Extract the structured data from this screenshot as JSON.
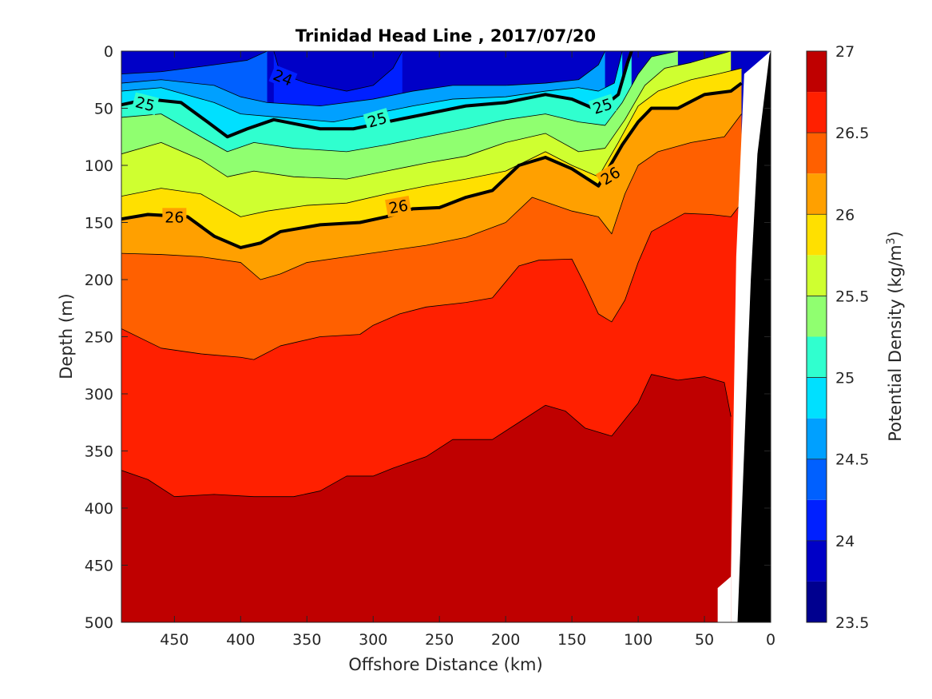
{
  "chart_data": {
    "type": "contour",
    "title": "Trinidad Head Line , 2017/07/20",
    "xlabel": "Offshore Distance (km)",
    "ylabel": "Depth (m)",
    "colorbar_label_prefix": "Potential Density (kg/m",
    "colorbar_label_sup": "3",
    "colorbar_label_suffix": ")",
    "xlim": [
      490,
      0
    ],
    "ylim": [
      500,
      0
    ],
    "y_reversed": true,
    "x_reversed": true,
    "x_ticks": [
      450,
      400,
      350,
      300,
      250,
      200,
      150,
      100,
      50,
      0
    ],
    "y_ticks": [
      0,
      50,
      100,
      150,
      200,
      250,
      300,
      350,
      400,
      450,
      500
    ],
    "colorbar_ticks": [
      27,
      26.5,
      26,
      25.5,
      25,
      24.5,
      24,
      23.5
    ],
    "colorbar_range": [
      23.5,
      27
    ],
    "colormap": "jet",
    "level_colors": [
      {
        "from": 23.5,
        "to": 23.75,
        "color": "#00008f"
      },
      {
        "from": 23.75,
        "to": 24.0,
        "color": "#0000c7"
      },
      {
        "from": 24.0,
        "to": 24.25,
        "color": "#0020ff"
      },
      {
        "from": 24.25,
        "to": 24.5,
        "color": "#0060ff"
      },
      {
        "from": 24.5,
        "to": 24.75,
        "color": "#00a0ff"
      },
      {
        "from": 24.75,
        "to": 25.0,
        "color": "#00e0ff"
      },
      {
        "from": 25.0,
        "to": 25.25,
        "color": "#30ffcf"
      },
      {
        "from": 25.25,
        "to": 25.5,
        "color": "#90ff70"
      },
      {
        "from": 25.5,
        "to": 25.75,
        "color": "#cfff30"
      },
      {
        "from": 25.75,
        "to": 26.0,
        "color": "#ffe000"
      },
      {
        "from": 26.0,
        "to": 26.25,
        "color": "#ffa000"
      },
      {
        "from": 26.25,
        "to": 26.5,
        "color": "#ff6000"
      },
      {
        "from": 26.5,
        "to": 26.75,
        "color": "#ff2000"
      },
      {
        "from": 26.75,
        "to": 27.0,
        "color": "#bf0000"
      }
    ],
    "contour_labels": [
      {
        "text": "24",
        "x": 368,
        "y": 23,
        "angle": 22
      },
      {
        "text": "25",
        "x": 472,
        "y": 46,
        "angle": 14
      },
      {
        "text": "25",
        "x": 297,
        "y": 60,
        "angle": -16
      },
      {
        "text": "25",
        "x": 127,
        "y": 48,
        "angle": -18
      },
      {
        "text": "26",
        "x": 450,
        "y": 145,
        "angle": 0
      },
      {
        "text": "26",
        "x": 281,
        "y": 136,
        "angle": -10
      },
      {
        "text": "26",
        "x": 121,
        "y": 109,
        "angle": -32
      }
    ],
    "isopycnals": [
      {
        "level": 24.0,
        "points": [
          [
            375,
            0
          ],
          [
            370,
            20
          ],
          [
            350,
            28
          ],
          [
            320,
            35
          ],
          [
            300,
            30
          ],
          [
            285,
            15
          ],
          [
            278,
            0
          ]
        ]
      },
      {
        "level": 24.25,
        "points": [
          [
            490,
            20
          ],
          [
            460,
            18
          ],
          [
            420,
            12
          ],
          [
            395,
            8
          ],
          [
            380,
            0
          ]
        ]
      },
      {
        "level": 24.5,
        "points": [
          [
            490,
            28
          ],
          [
            460,
            25
          ],
          [
            420,
            30
          ],
          [
            400,
            40
          ],
          [
            380,
            45
          ],
          [
            340,
            48
          ],
          [
            300,
            42
          ],
          [
            270,
            35
          ],
          [
            240,
            30
          ],
          [
            200,
            30
          ],
          [
            170,
            28
          ],
          [
            145,
            25
          ],
          [
            130,
            12
          ],
          [
            125,
            0
          ]
        ]
      },
      {
        "level": 24.75,
        "points": [
          [
            490,
            35
          ],
          [
            460,
            32
          ],
          [
            420,
            45
          ],
          [
            400,
            55
          ],
          [
            370,
            58
          ],
          [
            330,
            62
          ],
          [
            300,
            55
          ],
          [
            270,
            48
          ],
          [
            240,
            42
          ],
          [
            200,
            40
          ],
          [
            170,
            35
          ],
          [
            145,
            32
          ],
          [
            130,
            35
          ],
          [
            118,
            28
          ],
          [
            112,
            0
          ]
        ]
      },
      {
        "level": 25.0,
        "points": [
          [
            490,
            47
          ],
          [
            470,
            42
          ],
          [
            445,
            45
          ],
          [
            425,
            62
          ],
          [
            410,
            75
          ],
          [
            395,
            68
          ],
          [
            375,
            60
          ],
          [
            340,
            68
          ],
          [
            315,
            68
          ],
          [
            290,
            62
          ],
          [
            260,
            55
          ],
          [
            230,
            48
          ],
          [
            200,
            45
          ],
          [
            170,
            38
          ],
          [
            150,
            42
          ],
          [
            130,
            52
          ],
          [
            115,
            38
          ],
          [
            108,
            10
          ],
          [
            105,
            0
          ]
        ]
      },
      {
        "level": 25.25,
        "points": [
          [
            490,
            58
          ],
          [
            460,
            55
          ],
          [
            430,
            75
          ],
          [
            410,
            88
          ],
          [
            390,
            80
          ],
          [
            360,
            85
          ],
          [
            320,
            88
          ],
          [
            290,
            82
          ],
          [
            260,
            75
          ],
          [
            230,
            68
          ],
          [
            200,
            60
          ],
          [
            170,
            55
          ],
          [
            145,
            62
          ],
          [
            125,
            65
          ],
          [
            112,
            45
          ],
          [
            100,
            20
          ],
          [
            90,
            5
          ],
          [
            70,
            0
          ]
        ]
      },
      {
        "level": 25.5,
        "points": [
          [
            490,
            90
          ],
          [
            460,
            80
          ],
          [
            430,
            95
          ],
          [
            410,
            110
          ],
          [
            390,
            105
          ],
          [
            360,
            110
          ],
          [
            320,
            112
          ],
          [
            290,
            105
          ],
          [
            260,
            98
          ],
          [
            230,
            92
          ],
          [
            200,
            80
          ],
          [
            170,
            72
          ],
          [
            145,
            88
          ],
          [
            125,
            85
          ],
          [
            110,
            60
          ],
          [
            95,
            30
          ],
          [
            80,
            15
          ],
          [
            60,
            10
          ],
          [
            45,
            5
          ],
          [
            30,
            0
          ]
        ]
      },
      {
        "level": 25.75,
        "points": [
          [
            490,
            127
          ],
          [
            460,
            120
          ],
          [
            430,
            125
          ],
          [
            400,
            145
          ],
          [
            380,
            140
          ],
          [
            350,
            135
          ],
          [
            320,
            133
          ],
          [
            290,
            125
          ],
          [
            260,
            118
          ],
          [
            230,
            112
          ],
          [
            200,
            105
          ],
          [
            170,
            88
          ],
          [
            150,
            100
          ],
          [
            130,
            110
          ],
          [
            115,
            80
          ],
          [
            100,
            48
          ],
          [
            85,
            35
          ],
          [
            60,
            25
          ],
          [
            40,
            20
          ],
          [
            22,
            15
          ]
        ]
      },
      {
        "level": 26.0,
        "points": [
          [
            490,
            147
          ],
          [
            470,
            143
          ],
          [
            440,
            145
          ],
          [
            420,
            162
          ],
          [
            400,
            172
          ],
          [
            385,
            168
          ],
          [
            370,
            158
          ],
          [
            340,
            152
          ],
          [
            310,
            150
          ],
          [
            290,
            145
          ],
          [
            270,
            138
          ],
          [
            250,
            137
          ],
          [
            230,
            128
          ],
          [
            210,
            122
          ],
          [
            190,
            100
          ],
          [
            170,
            93
          ],
          [
            150,
            103
          ],
          [
            130,
            118
          ],
          [
            112,
            82
          ],
          [
            100,
            62
          ],
          [
            90,
            50
          ],
          [
            70,
            50
          ],
          [
            50,
            38
          ],
          [
            30,
            35
          ],
          [
            22,
            28
          ]
        ]
      },
      {
        "level": 26.25,
        "points": [
          [
            490,
            177
          ],
          [
            460,
            178
          ],
          [
            430,
            180
          ],
          [
            400,
            185
          ],
          [
            385,
            200
          ],
          [
            370,
            195
          ],
          [
            350,
            185
          ],
          [
            320,
            180
          ],
          [
            290,
            175
          ],
          [
            260,
            170
          ],
          [
            230,
            163
          ],
          [
            200,
            150
          ],
          [
            180,
            128
          ],
          [
            150,
            140
          ],
          [
            130,
            145
          ],
          [
            120,
            160
          ],
          [
            110,
            125
          ],
          [
            100,
            100
          ],
          [
            85,
            88
          ],
          [
            60,
            80
          ],
          [
            35,
            75
          ],
          [
            22,
            55
          ]
        ]
      },
      {
        "level": 26.5,
        "points": [
          [
            490,
            243
          ],
          [
            460,
            260
          ],
          [
            430,
            265
          ],
          [
            400,
            268
          ],
          [
            390,
            270
          ],
          [
            370,
            258
          ],
          [
            340,
            250
          ],
          [
            310,
            248
          ],
          [
            300,
            240
          ],
          [
            280,
            230
          ],
          [
            260,
            224
          ],
          [
            230,
            220
          ],
          [
            210,
            216
          ],
          [
            190,
            188
          ],
          [
            175,
            183
          ],
          [
            150,
            182
          ],
          [
            140,
            205
          ],
          [
            130,
            230
          ],
          [
            120,
            237
          ],
          [
            110,
            218
          ],
          [
            100,
            185
          ],
          [
            90,
            158
          ],
          [
            65,
            142
          ],
          [
            45,
            143
          ],
          [
            30,
            145
          ],
          [
            20,
            130
          ]
        ]
      },
      {
        "level": 26.75,
        "points": [
          [
            490,
            367
          ],
          [
            470,
            375
          ],
          [
            450,
            390
          ],
          [
            420,
            388
          ],
          [
            390,
            390
          ],
          [
            360,
            390
          ],
          [
            340,
            385
          ],
          [
            320,
            372
          ],
          [
            300,
            372
          ],
          [
            285,
            365
          ],
          [
            260,
            355
          ],
          [
            240,
            340
          ],
          [
            210,
            340
          ],
          [
            190,
            325
          ],
          [
            170,
            310
          ],
          [
            155,
            315
          ],
          [
            140,
            330
          ],
          [
            120,
            337
          ],
          [
            100,
            308
          ],
          [
            90,
            283
          ],
          [
            70,
            288
          ],
          [
            50,
            285
          ],
          [
            35,
            290
          ],
          [
            30,
            320
          ]
        ]
      }
    ],
    "bathymetry_coast": [
      [
        0,
        0
      ],
      [
        10,
        0
      ],
      [
        20,
        100
      ],
      [
        30,
        400
      ],
      [
        40,
        500
      ]
    ]
  }
}
